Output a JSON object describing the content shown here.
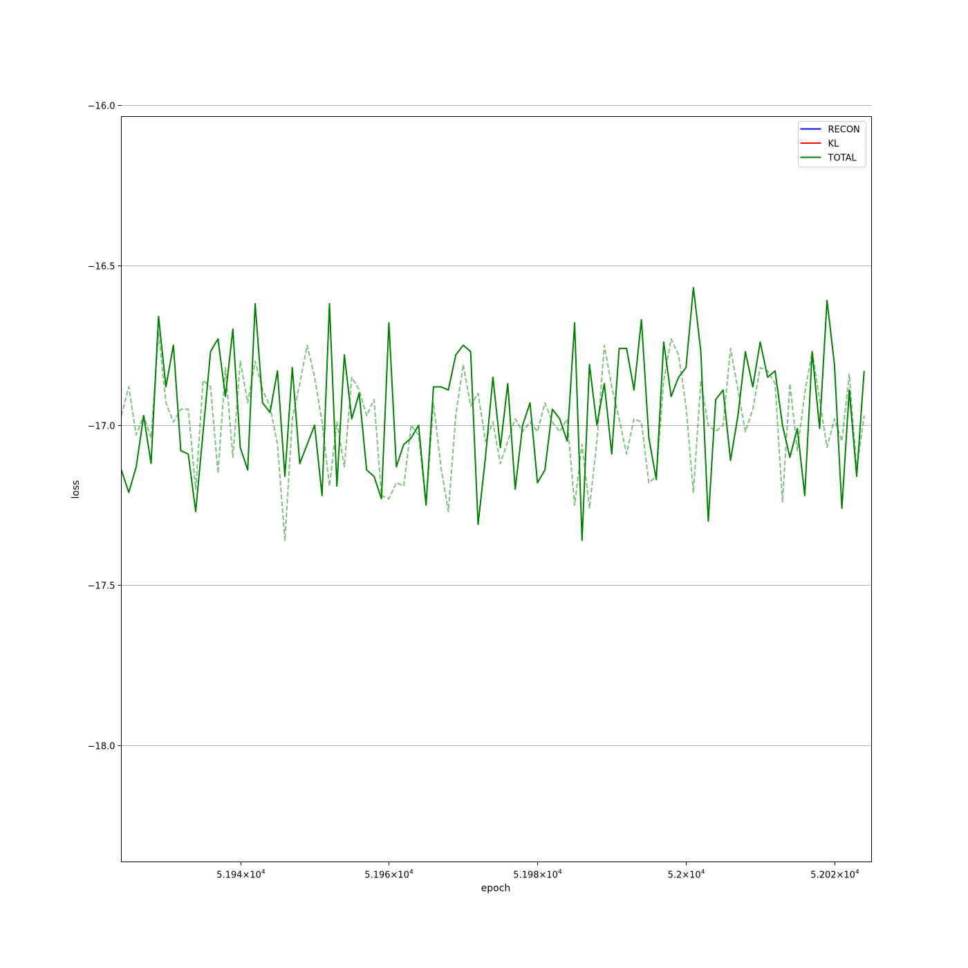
{
  "chart_data": {
    "type": "line",
    "title": "",
    "xlabel": "epoch",
    "ylabel": "loss",
    "xscale": "log",
    "xlim": [
      51924,
      52025
    ],
    "ylim": [
      -18.365,
      -16.035
    ],
    "grid": "horizontal",
    "legend_position": "top-right",
    "x_ticks": [
      {
        "value": 51940,
        "mantissa": "5.194",
        "exponent": "4"
      },
      {
        "value": 51960,
        "mantissa": "5.196",
        "exponent": "4"
      },
      {
        "value": 51980,
        "mantissa": "5.198",
        "exponent": "4"
      },
      {
        "value": 52000,
        "mantissa": "5.2",
        "exponent": "4"
      },
      {
        "value": 52020,
        "mantissa": "5.202",
        "exponent": "4"
      }
    ],
    "y_ticks": [
      {
        "value": -16.0,
        "label": "−16.0"
      },
      {
        "value": -16.5,
        "label": "−16.5"
      },
      {
        "value": -17.0,
        "label": "−17.0"
      },
      {
        "value": -17.5,
        "label": "−17.5"
      },
      {
        "value": -18.0,
        "label": "−18.0"
      }
    ],
    "legend": [
      {
        "name": "RECON",
        "color": "#0000ff"
      },
      {
        "name": "KL",
        "color": "#ff0000"
      },
      {
        "name": "TOTAL",
        "color": "#008000"
      }
    ],
    "series": [
      {
        "name": "TOTAL",
        "color": "#008000",
        "style": "solid",
        "x_start": 51924,
        "x_step": 1,
        "values": [
          -17.14,
          -17.21,
          -17.13,
          -16.97,
          -17.12,
          -16.66,
          -16.88,
          -16.75,
          -17.08,
          -17.09,
          -17.27,
          -17.02,
          -16.77,
          -16.73,
          -16.91,
          -16.7,
          -17.07,
          -17.14,
          -16.62,
          -16.93,
          -16.96,
          -16.83,
          -17.16,
          -16.82,
          -17.12,
          -17.06,
          -17.0,
          -17.22,
          -16.62,
          -17.19,
          -16.78,
          -16.98,
          -16.9,
          -17.14,
          -17.16,
          -17.23,
          -16.68,
          -17.13,
          -17.06,
          -17.04,
          -17.0,
          -17.25,
          -16.88,
          -16.88,
          -16.89,
          -16.78,
          -16.75,
          -16.77,
          -17.31,
          -17.1,
          -16.85,
          -17.07,
          -16.87,
          -17.2,
          -17.0,
          -16.93,
          -17.18,
          -17.14,
          -16.95,
          -16.98,
          -17.05,
          -16.68,
          -17.36,
          -16.81,
          -17.0,
          -16.87,
          -17.09,
          -16.76,
          -16.76,
          -16.89,
          -16.67,
          -17.04,
          -17.17,
          -16.74,
          -16.91,
          -16.85,
          -16.82,
          -16.57,
          -16.77,
          -17.3,
          -16.92,
          -16.89,
          -17.11,
          -16.97,
          -16.77,
          -16.88,
          -16.74,
          -16.85,
          -16.83,
          -17.0,
          -17.1,
          -17.01,
          -17.22,
          -16.77,
          -17.01,
          -16.61,
          -16.81,
          -17.26,
          -16.89,
          -17.16,
          -16.83
        ]
      },
      {
        "name": "",
        "color": "#008000",
        "style": "dashed",
        "opacity": 0.5,
        "x_start": 51924,
        "x_step": 1,
        "values": [
          -16.97,
          -16.88,
          -17.03,
          -16.97,
          -17.04,
          -16.71,
          -16.93,
          -16.99,
          -16.95,
          -16.95,
          -17.2,
          -16.86,
          -16.88,
          -17.15,
          -16.82,
          -17.1,
          -16.8,
          -16.93,
          -16.8,
          -16.89,
          -16.94,
          -17.06,
          -17.36,
          -16.98,
          -16.87,
          -16.75,
          -16.85,
          -16.99,
          -17.19,
          -16.99,
          -17.13,
          -16.85,
          -16.89,
          -16.97,
          -16.92,
          -17.22,
          -17.23,
          -17.18,
          -17.19,
          -17.0,
          -17.03,
          -17.25,
          -16.93,
          -17.13,
          -17.27,
          -16.97,
          -16.81,
          -16.94,
          -16.9,
          -17.05,
          -16.99,
          -17.12,
          -17.05,
          -16.98,
          -17.02,
          -16.99,
          -17.02,
          -16.93,
          -16.99,
          -17.02,
          -16.98,
          -17.25,
          -17.06,
          -17.26,
          -17.05,
          -16.75,
          -16.88,
          -16.98,
          -17.09,
          -16.98,
          -16.99,
          -17.18,
          -17.16,
          -16.86,
          -16.73,
          -16.78,
          -16.94,
          -17.21,
          -16.86,
          -17.0,
          -17.02,
          -17.0,
          -16.76,
          -16.89,
          -17.02,
          -16.95,
          -16.82,
          -16.83,
          -16.87,
          -17.24,
          -16.87,
          -17.08,
          -16.9,
          -16.77,
          -16.92,
          -17.07,
          -16.98,
          -17.05,
          -16.84,
          -17.14,
          -16.97
        ]
      }
    ]
  }
}
